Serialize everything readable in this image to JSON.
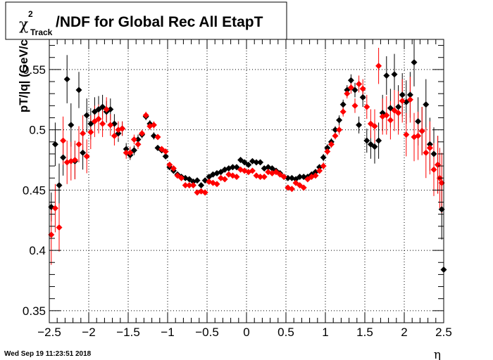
{
  "chart_data": {
    "type": "scatter",
    "title": {
      "symbol": "χ",
      "superscript": "2",
      "subscript": "Track",
      "text": "/NDF for Global Rec All EtapT"
    },
    "xlabel": "η",
    "ylabel": "pT/|q| (GeV/c",
    "xlim": [
      -2.5,
      2.5
    ],
    "ylim": [
      0.34,
      0.575
    ],
    "xticks": [
      -2.5,
      -2,
      -1.5,
      -1,
      -0.5,
      0,
      0.5,
      1,
      1.5,
      2,
      2.5
    ],
    "xtick_labels": [
      "−2.5",
      "−2",
      "−1.5",
      "−1",
      "−0.5",
      "0",
      "0.5",
      "1",
      "1.5",
      "2",
      "2.5"
    ],
    "yticks": [
      0.35,
      0.4,
      0.45,
      0.5,
      0.55
    ],
    "ytick_labels": [
      "0.35",
      "0.4",
      "0.45",
      "0.5",
      "0.55"
    ],
    "grid": true,
    "series": [
      {
        "color": "#000000",
        "points": [
          [
            -2.475,
            0.436,
            0.012
          ],
          [
            -2.425,
            0.488,
            0.018
          ],
          [
            -2.375,
            0.454,
            0.018
          ],
          [
            -2.325,
            0.477,
            0.015
          ],
          [
            -2.275,
            0.542,
            0.02
          ],
          [
            -2.225,
            0.504,
            0.018
          ],
          [
            -2.175,
            0.474,
            0.015
          ],
          [
            -2.125,
            0.533,
            0.015
          ],
          [
            -2.075,
            0.481,
            0.014
          ],
          [
            -2.025,
            0.512,
            0.014
          ],
          [
            -1.975,
            0.505,
            0.013
          ],
          [
            -1.925,
            0.515,
            0.012
          ],
          [
            -1.875,
            0.517,
            0.011
          ],
          [
            -1.825,
            0.519,
            0.01
          ],
          [
            -1.775,
            0.515,
            0.009
          ],
          [
            -1.725,
            0.517,
            0.009
          ],
          [
            -1.675,
            0.505,
            0.008
          ],
          [
            -1.625,
            0.497,
            0.007
          ],
          [
            -1.575,
            0.501,
            0.006
          ],
          [
            -1.525,
            0.484,
            0.005
          ],
          [
            -1.475,
            0.479,
            0.004
          ],
          [
            -1.425,
            0.483,
            0.004
          ],
          [
            -1.375,
            0.492,
            0.004
          ],
          [
            -1.325,
            0.496,
            0.003
          ],
          [
            -1.275,
            0.511,
            0.003
          ],
          [
            -1.225,
            0.505,
            0.003
          ],
          [
            -1.175,
            0.495,
            0.003
          ],
          [
            -1.125,
            0.485,
            0.002
          ],
          [
            -1.075,
            0.483,
            0.002
          ],
          [
            -1.025,
            0.478,
            0.002
          ],
          [
            -0.975,
            0.469,
            0.002
          ],
          [
            -0.925,
            0.466,
            0.002
          ],
          [
            -0.875,
            0.463,
            0.002
          ],
          [
            -0.825,
            0.461,
            0.002
          ],
          [
            -0.775,
            0.46,
            0.002
          ],
          [
            -0.725,
            0.459,
            0.002
          ],
          [
            -0.675,
            0.457,
            0.002
          ],
          [
            -0.625,
            0.458,
            0.002
          ],
          [
            -0.575,
            0.454,
            0.002
          ],
          [
            -0.525,
            0.458,
            0.002
          ],
          [
            -0.475,
            0.461,
            0.002
          ],
          [
            -0.425,
            0.463,
            0.002
          ],
          [
            -0.375,
            0.464,
            0.002
          ],
          [
            -0.325,
            0.465,
            0.002
          ],
          [
            -0.275,
            0.467,
            0.002
          ],
          [
            -0.225,
            0.468,
            0.002
          ],
          [
            -0.175,
            0.469,
            0.002
          ],
          [
            -0.125,
            0.469,
            0.002
          ],
          [
            -0.075,
            0.475,
            0.002
          ],
          [
            -0.025,
            0.473,
            0.002
          ],
          [
            0.025,
            0.471,
            0.002
          ],
          [
            0.075,
            0.474,
            0.002
          ],
          [
            0.125,
            0.473,
            0.002
          ],
          [
            0.175,
            0.473,
            0.002
          ],
          [
            0.225,
            0.468,
            0.002
          ],
          [
            0.275,
            0.469,
            0.002
          ],
          [
            0.325,
            0.468,
            0.002
          ],
          [
            0.375,
            0.466,
            0.002
          ],
          [
            0.425,
            0.464,
            0.002
          ],
          [
            0.475,
            0.461,
            0.002
          ],
          [
            0.525,
            0.46,
            0.002
          ],
          [
            0.575,
            0.46,
            0.002
          ],
          [
            0.625,
            0.459,
            0.002
          ],
          [
            0.675,
            0.461,
            0.002
          ],
          [
            0.725,
            0.461,
            0.002
          ],
          [
            0.775,
            0.461,
            0.002
          ],
          [
            0.825,
            0.463,
            0.002
          ],
          [
            0.875,
            0.465,
            0.002
          ],
          [
            0.925,
            0.469,
            0.002
          ],
          [
            0.975,
            0.477,
            0.003
          ],
          [
            1.025,
            0.485,
            0.003
          ],
          [
            1.075,
            0.49,
            0.003
          ],
          [
            1.125,
            0.5,
            0.003
          ],
          [
            1.175,
            0.508,
            0.004
          ],
          [
            1.225,
            0.521,
            0.004
          ],
          [
            1.275,
            0.533,
            0.004
          ],
          [
            1.325,
            0.541,
            0.005
          ],
          [
            1.375,
            0.533,
            0.006
          ],
          [
            1.425,
            0.504,
            0.007
          ],
          [
            1.475,
            0.527,
            0.008
          ],
          [
            1.525,
            0.491,
            0.01
          ],
          [
            1.575,
            0.488,
            0.012
          ],
          [
            1.625,
            0.486,
            0.014
          ],
          [
            1.675,
            0.491,
            0.015
          ],
          [
            1.725,
            0.514,
            0.015
          ],
          [
            1.775,
            0.545,
            0.016
          ],
          [
            1.825,
            0.518,
            0.016
          ],
          [
            1.875,
            0.546,
            0.017
          ],
          [
            1.925,
            0.519,
            0.018
          ],
          [
            1.975,
            0.529,
            0.018
          ],
          [
            2.025,
            0.523,
            0.018
          ],
          [
            2.075,
            0.529,
            0.019
          ],
          [
            2.125,
            0.556,
            0.02
          ],
          [
            2.175,
            0.507,
            0.02
          ],
          [
            2.225,
            0.499,
            0.02
          ],
          [
            2.275,
            0.521,
            0.021
          ],
          [
            2.325,
            0.488,
            0.022
          ],
          [
            2.375,
            0.48,
            0.022
          ],
          [
            2.425,
            0.471,
            0.024
          ],
          [
            2.475,
            0.434,
            0.025
          ]
        ]
      },
      {
        "color": "#ff0000",
        "points": [
          [
            -2.475,
            0.413,
            0.025
          ],
          [
            -2.425,
            0.435,
            0.02
          ],
          [
            -2.375,
            0.419,
            0.02
          ],
          [
            -2.325,
            0.491,
            0.02
          ],
          [
            -2.275,
            0.473,
            0.018
          ],
          [
            -2.225,
            0.474,
            0.016
          ],
          [
            -2.175,
            0.475,
            0.016
          ],
          [
            -2.125,
            0.488,
            0.015
          ],
          [
            -2.075,
            0.497,
            0.015
          ],
          [
            -2.025,
            0.478,
            0.014
          ],
          [
            -1.975,
            0.498,
            0.014
          ],
          [
            -1.925,
            0.507,
            0.013
          ],
          [
            -1.875,
            0.509,
            0.012
          ],
          [
            -1.825,
            0.505,
            0.011
          ],
          [
            -1.775,
            0.517,
            0.01
          ],
          [
            -1.725,
            0.504,
            0.009
          ],
          [
            -1.675,
            0.495,
            0.008
          ],
          [
            -1.625,
            0.5,
            0.007
          ],
          [
            -1.575,
            0.501,
            0.006
          ],
          [
            -1.525,
            0.481,
            0.005
          ],
          [
            -1.475,
            0.481,
            0.005
          ],
          [
            -1.425,
            0.492,
            0.004
          ],
          [
            -1.375,
            0.488,
            0.004
          ],
          [
            -1.325,
            0.497,
            0.003
          ],
          [
            -1.275,
            0.512,
            0.003
          ],
          [
            -1.225,
            0.503,
            0.003
          ],
          [
            -1.175,
            0.504,
            0.003
          ],
          [
            -1.125,
            0.494,
            0.002
          ],
          [
            -1.075,
            0.484,
            0.002
          ],
          [
            -1.025,
            0.482,
            0.002
          ],
          [
            -0.975,
            0.471,
            0.002
          ],
          [
            -0.925,
            0.468,
            0.002
          ],
          [
            -0.875,
            0.462,
            0.002
          ],
          [
            -0.825,
            0.46,
            0.002
          ],
          [
            -0.775,
            0.454,
            0.002
          ],
          [
            -0.725,
            0.454,
            0.002
          ],
          [
            -0.675,
            0.454,
            0.002
          ],
          [
            -0.625,
            0.448,
            0.002
          ],
          [
            -0.575,
            0.449,
            0.002
          ],
          [
            -0.525,
            0.448,
            0.002
          ],
          [
            -0.475,
            0.457,
            0.002
          ],
          [
            -0.425,
            0.456,
            0.002
          ],
          [
            -0.375,
            0.455,
            0.002
          ],
          [
            -0.325,
            0.46,
            0.002
          ],
          [
            -0.275,
            0.459,
            0.002
          ],
          [
            -0.225,
            0.463,
            0.002
          ],
          [
            -0.175,
            0.462,
            0.002
          ],
          [
            -0.125,
            0.461,
            0.002
          ],
          [
            -0.075,
            0.467,
            0.002
          ],
          [
            -0.025,
            0.466,
            0.002
          ],
          [
            0.025,
            0.465,
            0.002
          ],
          [
            0.075,
            0.466,
            0.002
          ],
          [
            0.125,
            0.462,
            0.002
          ],
          [
            0.175,
            0.461,
            0.002
          ],
          [
            0.225,
            0.461,
            0.002
          ],
          [
            0.275,
            0.465,
            0.002
          ],
          [
            0.325,
            0.464,
            0.002
          ],
          [
            0.375,
            0.465,
            0.002
          ],
          [
            0.425,
            0.463,
            0.002
          ],
          [
            0.475,
            0.461,
            0.002
          ],
          [
            0.525,
            0.452,
            0.002
          ],
          [
            0.575,
            0.451,
            0.002
          ],
          [
            0.625,
            0.456,
            0.002
          ],
          [
            0.675,
            0.454,
            0.002
          ],
          [
            0.725,
            0.452,
            0.002
          ],
          [
            0.775,
            0.459,
            0.002
          ],
          [
            0.825,
            0.461,
            0.002
          ],
          [
            0.875,
            0.462,
            0.002
          ],
          [
            0.925,
            0.466,
            0.002
          ],
          [
            0.975,
            0.47,
            0.003
          ],
          [
            1.025,
            0.482,
            0.003
          ],
          [
            1.075,
            0.488,
            0.003
          ],
          [
            1.125,
            0.495,
            0.003
          ],
          [
            1.175,
            0.5,
            0.004
          ],
          [
            1.225,
            0.515,
            0.004
          ],
          [
            1.275,
            0.53,
            0.004
          ],
          [
            1.325,
            0.535,
            0.005
          ],
          [
            1.375,
            0.52,
            0.006
          ],
          [
            1.425,
            0.538,
            0.007
          ],
          [
            1.475,
            0.534,
            0.008
          ],
          [
            1.525,
            0.519,
            0.01
          ],
          [
            1.575,
            0.505,
            0.012
          ],
          [
            1.625,
            0.503,
            0.014
          ],
          [
            1.675,
            0.553,
            0.015
          ],
          [
            1.725,
            0.511,
            0.015
          ],
          [
            1.775,
            0.512,
            0.016
          ],
          [
            1.825,
            0.508,
            0.016
          ],
          [
            1.875,
            0.516,
            0.017
          ],
          [
            1.925,
            0.514,
            0.018
          ],
          [
            1.975,
            0.524,
            0.018
          ],
          [
            2.025,
            0.496,
            0.018
          ],
          [
            2.075,
            0.525,
            0.019
          ],
          [
            2.125,
            0.494,
            0.02
          ],
          [
            2.175,
            0.495,
            0.02
          ],
          [
            2.225,
            0.499,
            0.02
          ],
          [
            2.275,
            0.481,
            0.021
          ],
          [
            2.325,
            0.485,
            0.022
          ],
          [
            2.375,
            0.467,
            0.022
          ],
          [
            2.425,
            0.471,
            0.024
          ],
          [
            2.475,
            0.456,
            0.025
          ]
        ]
      }
    ],
    "extra_black_point": [
      2.5,
      0.384,
      0.03
    ],
    "extra_red_point": [
      2.45,
      0.46,
      0.025
    ]
  },
  "footer": {
    "timestamp": "Wed Sep 19 11:23:51 2018"
  }
}
